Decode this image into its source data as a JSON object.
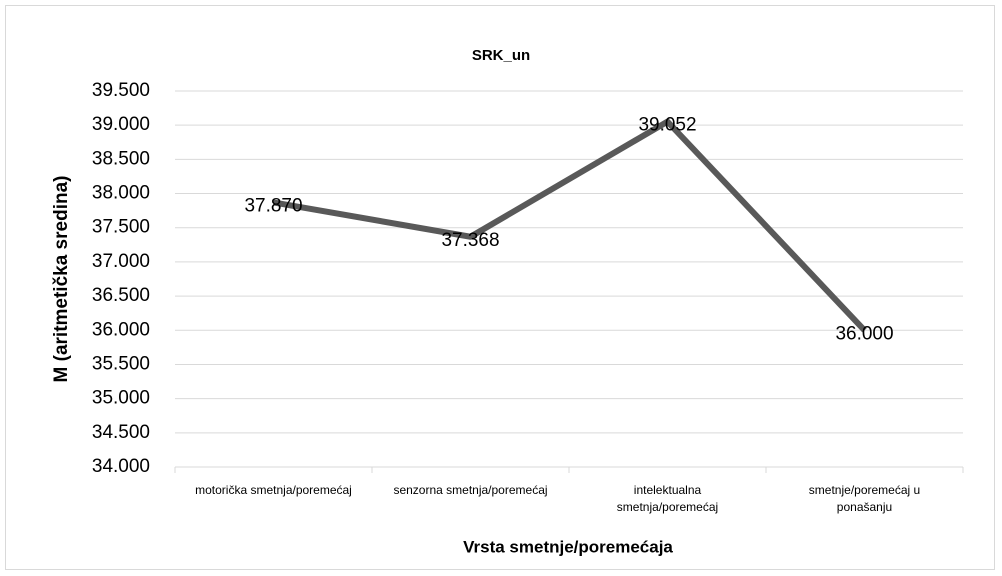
{
  "chart_data": {
    "type": "line",
    "title": "SRK_un",
    "x_label": "Vrsta smetnje/poremećaja",
    "y_label": "M (aritmetička sredina)",
    "categories": [
      "motorička smetnja/poremećaj",
      "senzorna smetnja/poremećaj",
      "intelektualna smetnja/poremećaj",
      "smetnje/poremećaj u ponašanju"
    ],
    "values": [
      37.87,
      37.368,
      39.052,
      36.0
    ],
    "value_labels": [
      "37.870",
      "37.368",
      "39.052",
      "36.000"
    ],
    "color": "#595959",
    "ylim": [
      34,
      39.5
    ],
    "yticks": [
      {
        "value": 34,
        "label": "34.000"
      },
      {
        "value": 34.5,
        "label": "34.500"
      },
      {
        "value": 35,
        "label": "35.000"
      },
      {
        "value": 35.5,
        "label": "35.500"
      },
      {
        "value": 36,
        "label": "36.000"
      },
      {
        "value": 36.5,
        "label": "36.500"
      },
      {
        "value": 37,
        "label": "37.000"
      },
      {
        "value": 37.5,
        "label": "37.500"
      },
      {
        "value": 38,
        "label": "38.000"
      },
      {
        "value": 38.5,
        "label": "38.500"
      },
      {
        "value": 39,
        "label": "39.000"
      },
      {
        "value": 39.5,
        "label": "39.500"
      }
    ],
    "grid": true
  }
}
